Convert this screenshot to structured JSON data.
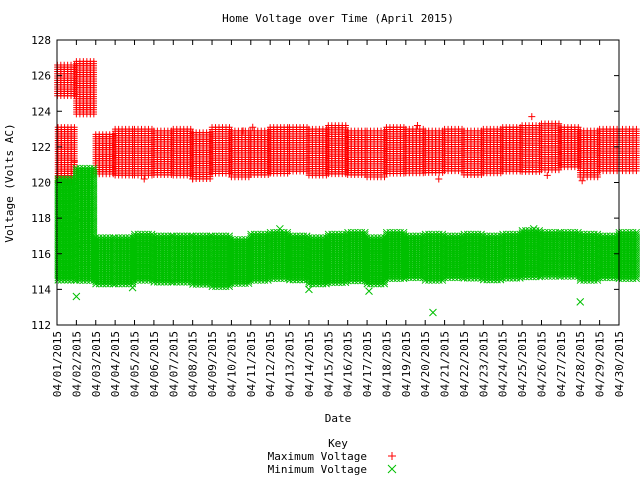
{
  "chart_data": {
    "type": "scatter",
    "title": "Home Voltage over Time (April 2015)",
    "xlabel": "Date",
    "ylabel": "Voltage (Volts AC)",
    "ylim": [
      112,
      128
    ],
    "yticks": [
      112,
      114,
      116,
      118,
      120,
      122,
      124,
      126,
      128
    ],
    "grid": false,
    "legend": {
      "title": "Key",
      "placement": "bottom-center"
    },
    "categories": [
      "04/01/2015",
      "04/02/2015",
      "04/03/2015",
      "04/04/2015",
      "04/05/2015",
      "04/06/2015",
      "04/07/2015",
      "04/08/2015",
      "04/09/2015",
      "04/10/2015",
      "04/11/2015",
      "04/12/2015",
      "04/13/2015",
      "04/14/2015",
      "04/15/2015",
      "04/16/2015",
      "04/17/2015",
      "04/18/2015",
      "04/19/2015",
      "04/20/2015",
      "04/21/2015",
      "04/22/2015",
      "04/23/2015",
      "04/24/2015",
      "04/25/2015",
      "04/26/2015",
      "04/27/2015",
      "04/28/2015",
      "04/29/2015",
      "04/30/2015"
    ],
    "series": [
      {
        "name": "Maximum Voltage",
        "color": "#ff0000",
        "marker": "plus",
        "day_ranges": [
          [
            [
              0.02,
              0.9,
              124.8,
              126.6
            ],
            [
              0.05,
              0.9,
              120.0,
              123.1
            ]
          ],
          [
            [
              0.0,
              0.9,
              123.8,
              126.8
            ]
          ],
          [
            [
              0.0,
              0.9,
              120.4,
              122.7
            ]
          ],
          [
            [
              0.0,
              0.9,
              120.3,
              123.0
            ]
          ],
          [
            [
              0.0,
              0.9,
              120.3,
              123.0
            ]
          ],
          [
            [
              0.0,
              0.9,
              120.4,
              122.9
            ]
          ],
          [
            [
              0.0,
              0.9,
              120.3,
              123.0
            ]
          ],
          [
            [
              0.0,
              0.9,
              120.2,
              122.8
            ]
          ],
          [
            [
              0.0,
              0.9,
              120.4,
              123.1
            ]
          ],
          [
            [
              0.0,
              0.9,
              120.3,
              122.9
            ]
          ],
          [
            [
              0.0,
              0.9,
              120.4,
              122.9
            ]
          ],
          [
            [
              0.0,
              0.9,
              120.5,
              123.1
            ]
          ],
          [
            [
              0.0,
              0.9,
              120.6,
              123.1
            ]
          ],
          [
            [
              0.0,
              0.9,
              120.3,
              123.0
            ]
          ],
          [
            [
              0.0,
              0.9,
              120.4,
              123.2
            ]
          ],
          [
            [
              0.0,
              0.9,
              120.4,
              122.9
            ]
          ],
          [
            [
              0.0,
              0.9,
              120.3,
              122.9
            ]
          ],
          [
            [
              0.0,
              0.9,
              120.5,
              123.1
            ]
          ],
          [
            [
              0.0,
              0.9,
              120.5,
              123.0
            ]
          ],
          [
            [
              0.0,
              0.9,
              120.5,
              122.9
            ]
          ],
          [
            [
              0.0,
              0.9,
              120.6,
              123.0
            ]
          ],
          [
            [
              0.0,
              0.9,
              120.4,
              122.9
            ]
          ],
          [
            [
              0.0,
              0.9,
              120.5,
              123.0
            ]
          ],
          [
            [
              0.0,
              0.9,
              120.6,
              123.1
            ]
          ],
          [
            [
              0.0,
              0.9,
              120.6,
              123.2
            ]
          ],
          [
            [
              0.0,
              0.9,
              120.6,
              123.3
            ]
          ],
          [
            [
              0.0,
              0.9,
              120.8,
              123.1
            ]
          ],
          [
            [
              0.0,
              0.9,
              120.3,
              122.9
            ]
          ],
          [
            [
              0.0,
              0.9,
              120.6,
              123.0
            ]
          ],
          [
            [
              0.0,
              0.9,
              120.6,
              123.0
            ]
          ]
        ],
        "outliers": [
          [
            0.9,
            120.6
          ],
          [
            0.9,
            121.2
          ],
          [
            4.5,
            120.2
          ],
          [
            7.0,
            120.2
          ],
          [
            9.6,
            122.9
          ],
          [
            10.1,
            123.1
          ],
          [
            18.6,
            123.2
          ],
          [
            24.5,
            123.7
          ],
          [
            25.3,
            120.4
          ],
          [
            27.1,
            120.1
          ],
          [
            19.7,
            120.2
          ]
        ]
      },
      {
        "name": "Minimum Voltage",
        "color": "#00c000",
        "marker": "cross",
        "day_ranges": [
          [
            [
              0.05,
              0.9,
              114.4,
              120.2
            ]
          ],
          [
            [
              0.0,
              0.9,
              114.4,
              120.8
            ]
          ],
          [
            [
              0.0,
              0.9,
              114.3,
              116.9
            ]
          ],
          [
            [
              0.0,
              0.9,
              114.3,
              116.9
            ]
          ],
          [
            [
              0.0,
              0.9,
              114.4,
              117.1
            ]
          ],
          [
            [
              0.0,
              0.9,
              114.3,
              117.0
            ]
          ],
          [
            [
              0.0,
              0.9,
              114.3,
              117.0
            ]
          ],
          [
            [
              0.0,
              0.9,
              114.2,
              117.0
            ]
          ],
          [
            [
              0.0,
              0.9,
              114.1,
              117.0
            ]
          ],
          [
            [
              0.0,
              0.9,
              114.3,
              116.8
            ]
          ],
          [
            [
              0.0,
              0.9,
              114.5,
              117.1
            ]
          ],
          [
            [
              0.0,
              0.9,
              114.6,
              117.2
            ]
          ],
          [
            [
              0.0,
              0.9,
              114.5,
              117.0
            ]
          ],
          [
            [
              0.0,
              0.9,
              114.3,
              116.9
            ]
          ],
          [
            [
              0.0,
              0.9,
              114.3,
              117.1
            ]
          ],
          [
            [
              0.0,
              0.9,
              114.4,
              117.2
            ]
          ],
          [
            [
              0.0,
              0.9,
              114.2,
              116.9
            ]
          ],
          [
            [
              0.0,
              0.9,
              114.6,
              117.2
            ]
          ],
          [
            [
              0.0,
              0.9,
              114.6,
              117.0
            ]
          ],
          [
            [
              0.0,
              0.9,
              114.5,
              117.1
            ]
          ],
          [
            [
              0.0,
              0.9,
              114.6,
              117.0
            ]
          ],
          [
            [
              0.0,
              0.9,
              114.6,
              117.1
            ]
          ],
          [
            [
              0.0,
              0.9,
              114.5,
              117.0
            ]
          ],
          [
            [
              0.0,
              0.9,
              114.6,
              117.1
            ]
          ],
          [
            [
              0.0,
              0.9,
              114.7,
              117.3
            ]
          ],
          [
            [
              0.0,
              0.9,
              114.7,
              117.2
            ]
          ],
          [
            [
              0.0,
              0.9,
              114.7,
              117.2
            ]
          ],
          [
            [
              0.0,
              0.9,
              114.5,
              117.1
            ]
          ],
          [
            [
              0.0,
              0.9,
              114.6,
              117.0
            ]
          ],
          [
            [
              0.0,
              0.9,
              114.5,
              117.2
            ]
          ]
        ],
        "outliers": [
          [
            1.0,
            113.6
          ],
          [
            19.4,
            112.7
          ],
          [
            27.0,
            113.3
          ],
          [
            1.1,
            117.8
          ],
          [
            1.1,
            116.5
          ],
          [
            0.1,
            117.4
          ],
          [
            11.5,
            117.4
          ],
          [
            24.6,
            117.4
          ],
          [
            3.9,
            114.1
          ],
          [
            13.0,
            114.0
          ],
          [
            16.1,
            113.9
          ]
        ]
      }
    ]
  }
}
